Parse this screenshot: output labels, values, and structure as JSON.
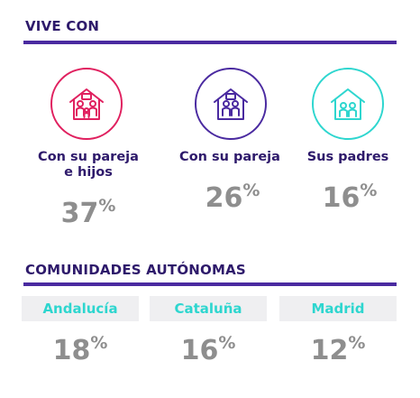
{
  "section1": {
    "title": "VIVE CON",
    "items": [
      {
        "label_line1": "Con su pareja",
        "label_line2": "e hijos",
        "value": "37",
        "unit": "%",
        "icon": "family-house-icon",
        "color": "#e0205f"
      },
      {
        "label_line1": "Con su pareja",
        "value": "26",
        "unit": "%",
        "icon": "couple-house-icon",
        "color": "#4a2aa0"
      },
      {
        "label_line1": "Sus padres",
        "value": "16",
        "unit": "%",
        "icon": "parents-house-icon",
        "color": "#2ed6cf"
      }
    ]
  },
  "section2": {
    "title": "COMUNIDADES AUTÓNOMAS",
    "regions": [
      {
        "name": "Andalucía",
        "value": "18",
        "unit": "%"
      },
      {
        "name": "Cataluña",
        "value": "16",
        "unit": "%"
      },
      {
        "name": "Madrid",
        "value": "12",
        "unit": "%"
      }
    ]
  }
}
